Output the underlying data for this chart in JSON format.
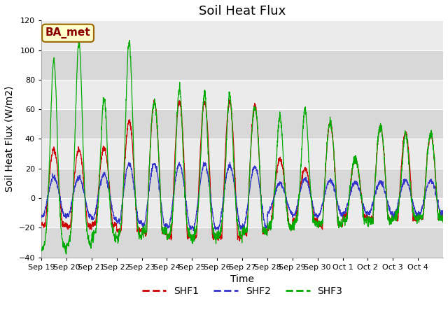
{
  "title": "Soil Heat Flux",
  "ylabel": "Soil Heat Flux (W/m2)",
  "xlabel": "Time",
  "annotation": "BA_met",
  "ylim": [
    -40,
    120
  ],
  "n_days": 16,
  "x_tick_labels": [
    "Sep 19",
    "Sep 20",
    "Sep 21",
    "Sep 22",
    "Sep 23",
    "Sep 24",
    "Sep 25",
    "Sep 26",
    "Sep 27",
    "Sep 28",
    "Sep 29",
    "Sep 30",
    "Oct 1",
    "Oct 2",
    "Oct 3",
    "Oct 4"
  ],
  "shf1_color": "#cc0000",
  "shf2_color": "#3333cc",
  "shf3_color": "#00aa00",
  "plot_bg_light": "#ebebeb",
  "plot_bg_dark": "#d8d8d8",
  "grid_color": "#ffffff",
  "fig_bg": "#ffffff",
  "legend_shf1": "SHF1",
  "legend_shf2": "SHF2",
  "legend_shf3": "SHF3",
  "title_fontsize": 13,
  "axis_label_fontsize": 10,
  "tick_fontsize": 8,
  "legend_fontsize": 10,
  "annotation_fontsize": 11,
  "annotation_bg": "#ffffcc",
  "annotation_border": "#996600",
  "shf1_peaks": [
    33,
    33,
    34,
    52,
    65,
    65,
    65,
    65,
    62,
    26,
    20,
    51,
    26,
    48,
    44,
    43
  ],
  "shf2_peaks": [
    14,
    14,
    16,
    23,
    23,
    23,
    23,
    22,
    21,
    10,
    13,
    12,
    11,
    11,
    12,
    12
  ],
  "shf3_peaks_day": [
    93,
    105,
    67,
    105,
    65,
    74,
    71,
    70,
    62,
    55,
    60,
    51,
    26,
    48,
    44,
    43
  ],
  "shf3_sharp": [
    true,
    true,
    true,
    true,
    false,
    true,
    true,
    true,
    false,
    true,
    true,
    false,
    false,
    false,
    true,
    false
  ],
  "shf1_night": [
    -18,
    -19,
    -18,
    -22,
    -23,
    -26,
    -26,
    -26,
    -23,
    -20,
    -15,
    -18,
    -12,
    -14,
    -14,
    -13
  ],
  "shf2_night": [
    -12,
    -12,
    -14,
    -16,
    -18,
    -20,
    -20,
    -20,
    -19,
    -15,
    -12,
    -13,
    -10,
    -10,
    -11,
    -10
  ],
  "shf3_night": [
    -35,
    -32,
    -27,
    -27,
    -22,
    -27,
    -27,
    -26,
    -22,
    -20,
    -18,
    -17,
    -15,
    -15,
    -14,
    -13
  ]
}
